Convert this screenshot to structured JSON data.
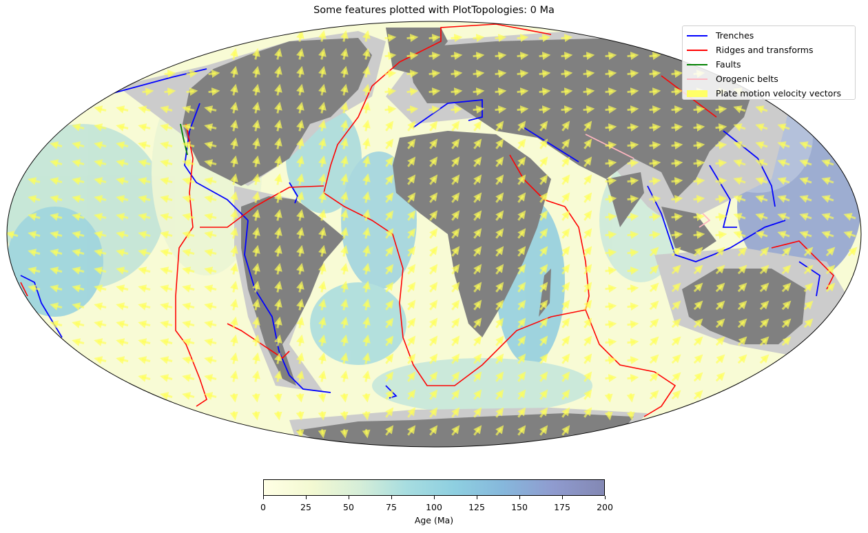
{
  "title": "Some features plotted with PlotTopologies: 0 Ma",
  "legend": [
    {
      "label": "Trenches",
      "color": "#0000ff",
      "kind": "line"
    },
    {
      "label": "Ridges and transforms",
      "color": "#ff0000",
      "kind": "line"
    },
    {
      "label": "Faults",
      "color": "#008000",
      "kind": "line"
    },
    {
      "label": "Orogenic belts",
      "color": "#ffb6c1",
      "kind": "line"
    },
    {
      "label": "Plate motion velocity vectors",
      "color": "#ffff66",
      "kind": "patch"
    }
  ],
  "colorbar": {
    "label": "Age (Ma)",
    "ticks": [
      "0",
      "25",
      "50",
      "75",
      "100",
      "125",
      "150",
      "175",
      "200"
    ],
    "colors": [
      "#ffffe5",
      "#f3f9d2",
      "#d6eed8",
      "#a7dde0",
      "#8ecfe0",
      "#86b8dc",
      "#8f9bcf",
      "#8388b4"
    ]
  },
  "map": {
    "projection": "Mollweide",
    "ocean_young_color": "#fbfcd9",
    "ocean_old_color": "#8e9fd0",
    "continent_color": "#808080",
    "shelf_color": "#cccccc",
    "vector_color": "#ffff55"
  }
}
